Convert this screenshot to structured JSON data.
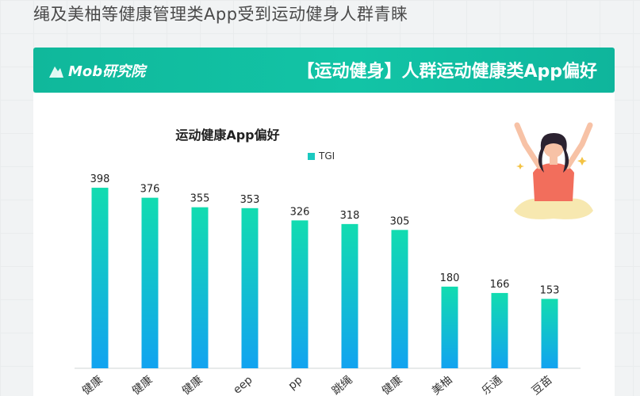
{
  "page_title": "绳及美柚等健康管理类App受到运动健身人群青睐",
  "banner": {
    "logo_text": "Mob研究院",
    "title": "【运动健身】人群运动健康类App偏好"
  },
  "colors": {
    "banner": "#12c4a6",
    "bar_top": "#12dcb0",
    "bar_bottom": "#12a3f0",
    "legend": "#1bc9c0"
  },
  "chart_data": {
    "type": "bar",
    "title": "运动健康App偏好",
    "legend": [
      "TGI"
    ],
    "categories": [
      "健康",
      "健康",
      "健康",
      "eep",
      "pp",
      "跳绳",
      "健康",
      "美柚",
      "乐通",
      "豆苗"
    ],
    "series": [
      {
        "name": "TGI",
        "values": [
          398,
          376,
          355,
          353,
          326,
          318,
          305,
          180,
          166,
          153
        ]
      }
    ],
    "ylim": [
      0,
      440
    ],
    "grid": false
  }
}
